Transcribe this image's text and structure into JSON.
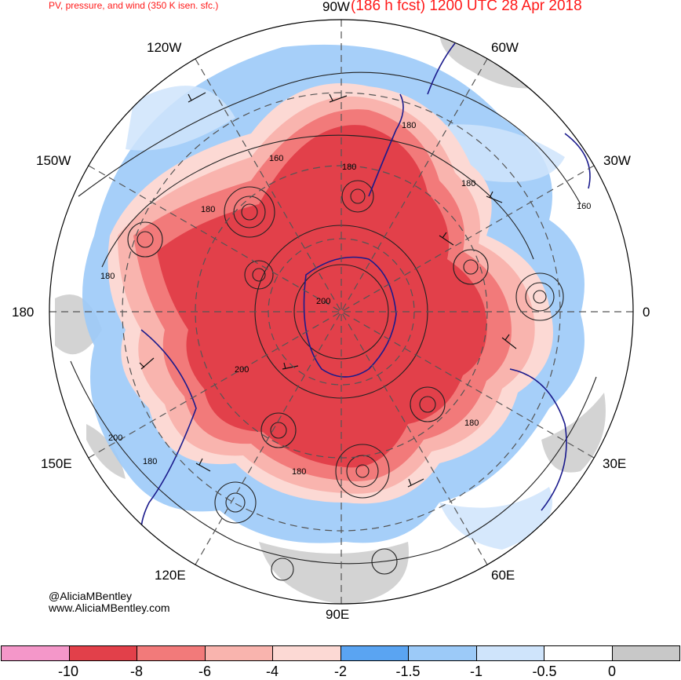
{
  "header": {
    "product": "PV, pressure, and wind (350 K isen. sfc.)",
    "forecast": "(186 h fcst) 1200 UTC 28 Apr 2018"
  },
  "longitude_labels": {
    "deg_90w": "90W",
    "deg_60w": "60W",
    "deg_30w": "30W",
    "deg_0": "0",
    "deg_30e": "30E",
    "deg_60e": "60E",
    "deg_90e": "90E",
    "deg_120e": "120E",
    "deg_150e": "150E",
    "deg_180": "180",
    "deg_150w": "150W",
    "deg_120w": "120W"
  },
  "contour_labels": [
    "180",
    "160",
    "180",
    "180",
    "160",
    "180",
    "200",
    "200",
    "180",
    "180",
    "200",
    "180",
    "180"
  ],
  "credit": {
    "handle": "@AliciaMBentley",
    "site": "www.AliciaMBentley.com"
  },
  "colorbar": {
    "ticks": [
      "-10",
      "-8",
      "-6",
      "-4",
      "-2",
      "-1.5",
      "-1",
      "-0.5",
      "0"
    ],
    "colors": [
      "#f497c9",
      "#e2404a",
      "#f27a7a",
      "#f9b4ae",
      "#fcd9d4",
      "#5aa4f2",
      "#9ccaf8",
      "#cfe4fb",
      "#ffffff",
      "#c8c8c8"
    ]
  },
  "map_colors": {
    "core_pv": "#e2404a",
    "strong_pv": "#f27a7a",
    "moderate_pv": "#f9b4ae",
    "weak_pv": "#fcd9d4",
    "blue_band": "#9ccaf8",
    "light_blue": "#cfe4fb",
    "coastline": "#1a1a8c",
    "gray_positive": "#c8c8c8"
  }
}
